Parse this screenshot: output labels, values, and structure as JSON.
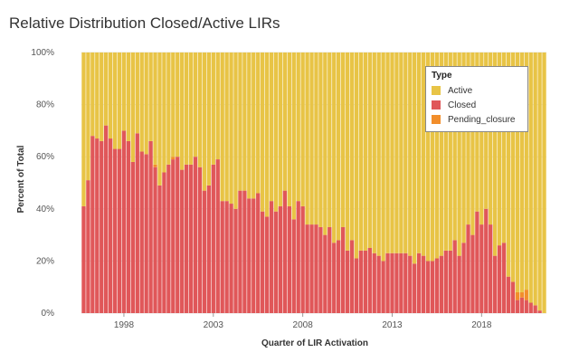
{
  "title": "Relative Distribution Closed/Active LIRs",
  "chart_data": {
    "type": "bar",
    "stacked": true,
    "title": "Relative Distribution Closed/Active LIRs",
    "xlabel": "Quarter of LIR Activation",
    "ylabel": "Percent of Total",
    "ylim": [
      0,
      100
    ],
    "y_ticks": [
      "0%",
      "20%",
      "40%",
      "60%",
      "80%",
      "100%"
    ],
    "x_ticks": [
      "1998",
      "2003",
      "2008",
      "2013",
      "2018"
    ],
    "grid": true,
    "legend_position": "top-right",
    "legend": {
      "title": "Type",
      "items": [
        {
          "name": "Active",
          "color": "#E8C446"
        },
        {
          "name": "Closed",
          "color": "#E05759"
        },
        {
          "name": "Pending_closure",
          "color": "#F28E2B"
        }
      ]
    },
    "x_start_quarter": "1995 Q4",
    "series": [
      {
        "name": "Closed",
        "color": "#E05759",
        "values": [
          41,
          51,
          68,
          67,
          66,
          72,
          67,
          63,
          63,
          70,
          66,
          58,
          69,
          62,
          61,
          66,
          56,
          49,
          54,
          57,
          59,
          60,
          55,
          57,
          57,
          60,
          56,
          47,
          49,
          57,
          59,
          43,
          43,
          42,
          40,
          47,
          47,
          44,
          44,
          46,
          39,
          37,
          43,
          39,
          41,
          47,
          41,
          36,
          43,
          41,
          34,
          34,
          34,
          33,
          30,
          33,
          27,
          28,
          33,
          24,
          28,
          21,
          24,
          24,
          25,
          23,
          22,
          20,
          23,
          23,
          23,
          23,
          23,
          22,
          19,
          23,
          22,
          20,
          20,
          21,
          22,
          24,
          24,
          28,
          22,
          27,
          34,
          30,
          39,
          34,
          40,
          34,
          22,
          26,
          27,
          14,
          12,
          5,
          6,
          5,
          4,
          3,
          1,
          0
        ]
      },
      {
        "name": "Pending_closure",
        "color": "#F28E2B",
        "values": [
          0,
          0,
          0,
          0,
          0,
          0,
          0,
          0,
          0,
          0,
          0,
          0,
          0,
          0,
          0,
          0,
          1,
          0,
          0,
          0,
          1,
          0,
          0,
          0,
          0,
          0,
          0,
          0,
          0,
          0,
          0,
          0,
          0,
          0,
          0,
          0,
          0,
          0,
          0,
          0,
          0,
          0,
          0,
          0,
          0,
          0,
          0,
          0,
          0,
          0,
          0,
          0,
          0,
          0,
          0,
          0,
          0,
          0,
          0,
          0,
          0,
          0,
          0,
          0,
          0,
          0,
          0,
          0,
          0,
          0,
          0,
          0,
          0,
          0,
          0,
          0,
          0,
          0,
          0,
          0,
          0,
          0,
          0,
          0,
          0,
          0,
          0,
          0,
          0,
          0,
          0,
          0,
          0,
          0,
          0,
          0,
          0,
          3,
          2,
          4,
          0,
          0,
          0,
          0
        ]
      },
      {
        "name": "Active",
        "color": "#E8C446",
        "values": [
          59,
          49,
          32,
          33,
          34,
          28,
          33,
          37,
          37,
          30,
          34,
          42,
          31,
          38,
          39,
          34,
          43,
          51,
          46,
          43,
          40,
          40,
          45,
          43,
          43,
          40,
          44,
          53,
          51,
          43,
          41,
          57,
          57,
          58,
          60,
          53,
          53,
          56,
          56,
          54,
          61,
          63,
          57,
          61,
          59,
          53,
          59,
          64,
          57,
          59,
          66,
          66,
          66,
          67,
          70,
          67,
          73,
          72,
          67,
          76,
          72,
          79,
          76,
          76,
          75,
          77,
          78,
          80,
          77,
          77,
          77,
          77,
          77,
          78,
          81,
          77,
          78,
          80,
          80,
          79,
          78,
          76,
          76,
          72,
          78,
          73,
          66,
          70,
          61,
          66,
          60,
          66,
          78,
          74,
          73,
          86,
          88,
          92,
          92,
          91,
          96,
          97,
          99,
          100
        ]
      }
    ]
  }
}
